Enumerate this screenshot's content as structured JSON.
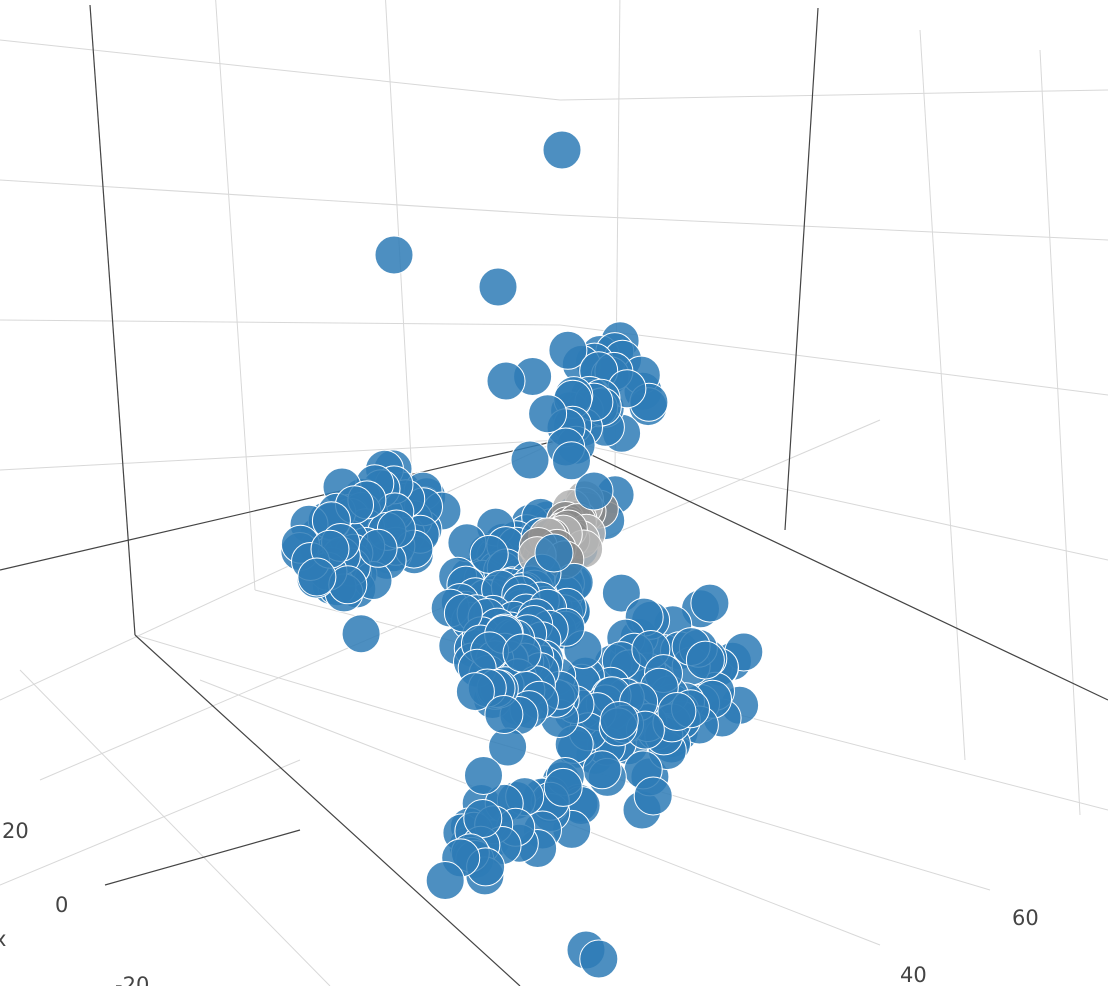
{
  "chart_data": {
    "type": "scatter3d",
    "title": "",
    "axis_label_fragment": "x",
    "axes": {
      "x": {
        "visible_ticks": [
          "20",
          "0",
          "-20"
        ]
      },
      "y": {
        "visible_ticks": [
          "40",
          "60"
        ]
      }
    },
    "marker_colors": {
      "primary": "#2e7bb6",
      "secondary": "#8a8a8a",
      "secondary_light": "#b3b3b3"
    },
    "grid": true,
    "series": [
      {
        "color_key": "primary",
        "clusters": [
          {
            "x": -8,
            "y": 28,
            "z": 22,
            "n": 40,
            "spread": 4
          },
          {
            "x": 4,
            "y": 10,
            "z": 12,
            "n": 90,
            "spread": 5
          },
          {
            "x": 12,
            "y": 40,
            "z": 10,
            "n": 60,
            "spread": 4
          },
          {
            "x": 0,
            "y": 44,
            "z": -8,
            "n": 100,
            "spread": 7
          },
          {
            "x": -4,
            "y": 22,
            "z": -6,
            "n": 55,
            "spread": 4
          },
          {
            "x": -14,
            "y": 12,
            "z": -14,
            "n": 130,
            "spread": 5
          },
          {
            "x": 18,
            "y": 46,
            "z": -4,
            "n": 35,
            "spread": 5
          }
        ],
        "outliers": [
          {
            "x": 10,
            "y": 20,
            "z": 60
          },
          {
            "x": 30,
            "y": 70,
            "z": 62
          },
          {
            "x": 14,
            "y": 40,
            "z": 52
          },
          {
            "x": 20,
            "y": 50,
            "z": 50
          },
          {
            "x": 26,
            "y": 60,
            "z": 46
          },
          {
            "x": -20,
            "y": 10,
            "z": 40
          },
          {
            "x": 30,
            "y": 60,
            "z": 36
          },
          {
            "x": 40,
            "y": 80,
            "z": 10
          },
          {
            "x": 42,
            "y": 84,
            "z": 12
          },
          {
            "x": -30,
            "y": -10,
            "z": 4
          },
          {
            "x": -12,
            "y": 30,
            "z": -40
          },
          {
            "x": -26,
            "y": 0,
            "z": -46
          }
        ]
      },
      {
        "color_key": "secondary",
        "clusters": [
          {
            "x": -10,
            "y": 22,
            "z": 0,
            "n": 25,
            "spread": 2
          }
        ]
      }
    ]
  }
}
